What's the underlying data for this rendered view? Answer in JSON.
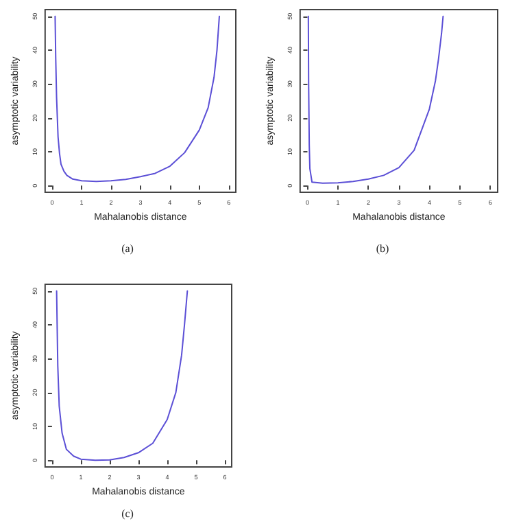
{
  "chart_data": [
    {
      "type": "line",
      "title": "(a)",
      "xlabel": "Mahalanobis distance",
      "ylabel": "asymptotic variability",
      "color": "#5b4fd6",
      "marker": "none",
      "line_style": "solid",
      "x": [
        0.1,
        0.12,
        0.15,
        0.2,
        0.25,
        0.3,
        0.4,
        0.5,
        0.7,
        1,
        1.5,
        2,
        2.5,
        3,
        3.5,
        4,
        4.5,
        5,
        5.3,
        5.5,
        5.6,
        5.68
      ],
      "values": [
        50,
        38,
        26,
        14.4,
        9.5,
        6.3,
        4.2,
        3,
        1.9,
        1.4,
        1.2,
        1.4,
        1.8,
        2.6,
        3.6,
        5.7,
        9.7,
        16.4,
        23,
        32,
        40,
        50
      ],
      "xlim": [
        -0.24,
        6.24
      ],
      "ylim": [
        -2,
        52
      ],
      "xticks": [
        0,
        1,
        2,
        3,
        4,
        5,
        6
      ],
      "yticks": [
        0,
        10,
        20,
        30,
        40,
        50
      ]
    },
    {
      "type": "line",
      "title": "(b)",
      "xlabel": "Mahalanobis distance",
      "ylabel": "asymptotic variability",
      "color": "#5b4fd6",
      "marker": "none",
      "line_style": "solid",
      "x": [
        0.03,
        0.04,
        0.06,
        0.08,
        0.15,
        0.5,
        1,
        1.5,
        2,
        2.5,
        3,
        3.5,
        4,
        4.2,
        4.3,
        4.4,
        4.45
      ],
      "values": [
        50,
        30,
        12,
        5,
        1,
        0.7,
        0.8,
        1.2,
        1.9,
        3,
        5.3,
        10.4,
        22.6,
        31,
        37.4,
        45,
        50
      ],
      "xlim": [
        -0.24,
        6.24
      ],
      "ylim": [
        -2,
        52
      ],
      "xticks": [
        0,
        1,
        2,
        3,
        4,
        5,
        6
      ],
      "yticks": [
        0,
        10,
        20,
        30,
        40,
        50
      ]
    },
    {
      "type": "line",
      "title": "(c)",
      "xlabel": "Mahalanobis distance",
      "ylabel": "asymptotic variability",
      "color": "#5b4fd6",
      "marker": "none",
      "line_style": "solid",
      "x": [
        0.16,
        0.2,
        0.25,
        0.35,
        0.5,
        0.75,
        1,
        1.5,
        2,
        2.5,
        3,
        3.5,
        4,
        4.3,
        4.5,
        4.6,
        4.7
      ],
      "values": [
        50,
        28,
        16,
        8,
        3.2,
        1.2,
        0.3,
        0,
        0.1,
        0.8,
        2.2,
        5,
        12,
        20,
        31,
        40,
        50
      ],
      "xlim": [
        -0.24,
        6.24
      ],
      "ylim": [
        -2,
        52
      ],
      "xticks": [
        0,
        1,
        2,
        3,
        4,
        5,
        6
      ],
      "yticks": [
        0,
        10,
        20,
        30,
        40,
        50
      ]
    }
  ]
}
